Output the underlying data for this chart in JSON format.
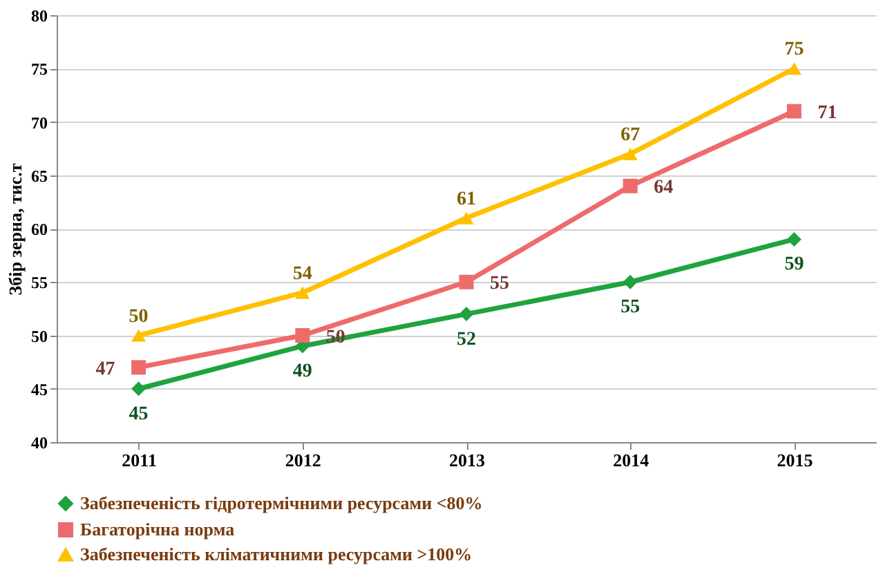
{
  "chart_data": {
    "type": "line",
    "ylabel": "Збір зерна, тис.т",
    "categories": [
      "2011",
      "2012",
      "2013",
      "2014",
      "2015"
    ],
    "series": [
      {
        "name": "Забезпеченість гідротермічними ресурсами <80%",
        "color": "#1fa33f",
        "marker": "diamond",
        "values": [
          45,
          49,
          52,
          55,
          59
        ]
      },
      {
        "name": "Багаторічна норма",
        "color": "#ee6b6b",
        "marker": "square",
        "values": [
          47,
          50,
          55,
          64,
          71
        ]
      },
      {
        "name": "Забезпеченість кліматичними ресурсами >100%",
        "color": "#ffc000",
        "marker": "triangle",
        "values": [
          50,
          54,
          61,
          67,
          75
        ]
      }
    ],
    "ylim": [
      40,
      80
    ],
    "yticks": [
      40,
      45,
      50,
      55,
      60,
      65,
      70,
      75,
      80
    ],
    "grid": "y",
    "legend": "bottom",
    "data_labels": true,
    "line_style": "solid"
  }
}
